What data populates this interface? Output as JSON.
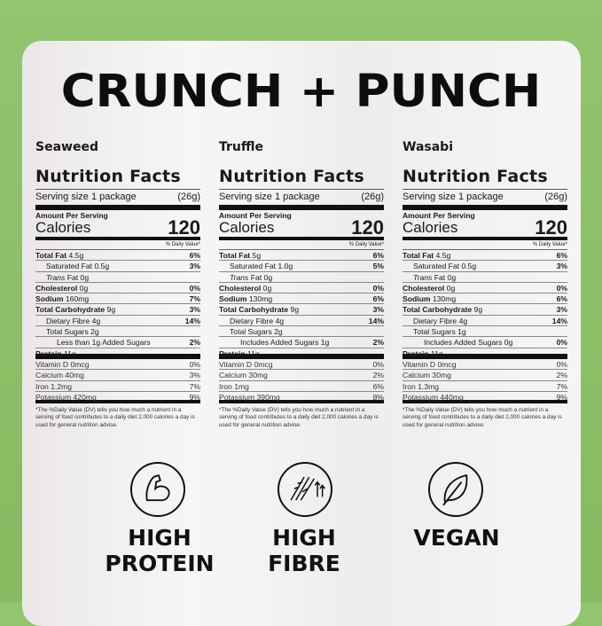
{
  "title": "CRUNCH + PUNCH",
  "panels": [
    {
      "flavor": "Seaweed",
      "heading": "Nutrition Facts",
      "serving": "Serving size 1 package",
      "serving_g": "(26g)",
      "amount": "Amount Per Serving",
      "calories_label": "Calories",
      "calories": "120",
      "dv_header": "% Daily Value*",
      "rows": [
        {
          "b": "Total Fat",
          "t": " 4.5g",
          "dv": "6%",
          "i": 0
        },
        {
          "b": "",
          "t": "Saturated Fat 0.5g",
          "dv": "3%",
          "i": 1
        },
        {
          "b": "",
          "it": "Trans",
          "t": " Fat 0g",
          "dv": "",
          "i": 1
        },
        {
          "b": "Cholesterol",
          "t": " 0g",
          "dv": "0%",
          "i": 0
        },
        {
          "b": "Sodium",
          "t": " 160mg",
          "dv": "7%",
          "i": 0
        },
        {
          "b": "Total Carbohydrate",
          "t": " 9g",
          "dv": "3%",
          "i": 0
        },
        {
          "b": "",
          "t": "Dietary Fibre 4g",
          "dv": "14%",
          "i": 1
        },
        {
          "b": "",
          "t": "Total Sugars 2g",
          "dv": "",
          "i": 1
        },
        {
          "b": "",
          "t": "Less than 1g Added Sugars",
          "dv": "2%",
          "i": 2
        },
        {
          "b": "Protein",
          "t": " 11g",
          "dv": "",
          "i": 0
        }
      ],
      "vitamins": [
        {
          "t": "Vitamin D 0mcg",
          "dv": "0%"
        },
        {
          "t": "Calcium 40mg",
          "dv": "3%"
        },
        {
          "t": "Iron 1.2mg",
          "dv": "7%"
        },
        {
          "t": "Potassium 420mg",
          "dv": "9%"
        }
      ],
      "footnote": "*The %Daily Value (DV) tells you how much a nutrient in a serving of food contributes to a daily diet 2,000 calories a day is used for general nutrition advise."
    },
    {
      "flavor": "Truffle",
      "heading": "Nutrition Facts",
      "serving": "Serving size 1 package",
      "serving_g": "(26g)",
      "amount": "Amount Per Serving",
      "calories_label": "Calories",
      "calories": "120",
      "dv_header": "% Daily Value*",
      "rows": [
        {
          "b": "Total Fat",
          "t": " 5g",
          "dv": "6%",
          "i": 0
        },
        {
          "b": "",
          "t": "Saturated Fat 1.0g",
          "dv": "5%",
          "i": 1
        },
        {
          "b": "",
          "it": "Trans",
          "t": " Fat 0g",
          "dv": "",
          "i": 1
        },
        {
          "b": "Cholesterol",
          "t": " 0g",
          "dv": "0%",
          "i": 0
        },
        {
          "b": "Sodium",
          "t": " 130mg",
          "dv": "6%",
          "i": 0
        },
        {
          "b": "Total Carbohydrate",
          "t": " 9g",
          "dv": "3%",
          "i": 0
        },
        {
          "b": "",
          "t": "Dietary Fibre 4g",
          "dv": "14%",
          "i": 1
        },
        {
          "b": "",
          "t": "Total Sugars 2g",
          "dv": "",
          "i": 1
        },
        {
          "b": "",
          "t": "Includes Added Sugars 1g",
          "dv": "2%",
          "i": 2
        },
        {
          "b": "Protein",
          "t": " 11g",
          "dv": "",
          "i": 0
        }
      ],
      "vitamins": [
        {
          "t": "Vitamin D 0mcg",
          "dv": "0%"
        },
        {
          "t": "Calcium 30mg",
          "dv": "2%"
        },
        {
          "t": "Iron 1mg",
          "dv": "6%"
        },
        {
          "t": "Potassium 390mg",
          "dv": "8%"
        }
      ],
      "footnote": "*The %Daily Value (DV) tells you how much a nutrient in a serving of food contributes to a daily diet 2,000 calories a day is used for general nutrition advise."
    },
    {
      "flavor": "Wasabi",
      "heading": "Nutrition Facts",
      "serving": "Serving size 1 package",
      "serving_g": "(26g)",
      "amount": "Amount Per Serving",
      "calories_label": "Calories",
      "calories": "120",
      "dv_header": "% Daily Value*",
      "rows": [
        {
          "b": "Total Fat",
          "t": " 4.5g",
          "dv": "6%",
          "i": 0
        },
        {
          "b": "",
          "t": "Saturated Fat 0.5g",
          "dv": "3%",
          "i": 1
        },
        {
          "b": "",
          "it": "Trans",
          "t": " Fat 0g",
          "dv": "",
          "i": 1
        },
        {
          "b": "Cholesterol",
          "t": " 0g",
          "dv": "0%",
          "i": 0
        },
        {
          "b": "Sodium",
          "t": " 130mg",
          "dv": "6%",
          "i": 0
        },
        {
          "b": "Total Carbohydrate",
          "t": " 9g",
          "dv": "3%",
          "i": 0
        },
        {
          "b": "",
          "t": "Dietary Fibre 4g",
          "dv": "14%",
          "i": 1
        },
        {
          "b": "",
          "t": "Total Sugars 1g",
          "dv": "",
          "i": 1
        },
        {
          "b": "",
          "t": "Includes Added Sugars 0g",
          "dv": "0%",
          "i": 2
        },
        {
          "b": "Protein",
          "t": " 11g",
          "dv": "",
          "i": 0
        }
      ],
      "vitamins": [
        {
          "t": "Vitamin D 0mcg",
          "dv": "0%"
        },
        {
          "t": "Calcium 30mg",
          "dv": "2%"
        },
        {
          "t": "Iron 1.3mg",
          "dv": "7%"
        },
        {
          "t": "Potassium 440mg",
          "dv": "9%"
        }
      ],
      "footnote": "*The %Daily Value (DV) tells you how much a nutrient in a serving of food contributes to a daily diet 2,000 calories a day is used for general nutrition advise."
    }
  ],
  "badges": [
    {
      "icon": "flexed-arm-icon",
      "line1": "HIGH",
      "line2": "PROTEIN"
    },
    {
      "icon": "fibre-wheat-icon",
      "line1": "HIGH",
      "line2": "FIBRE"
    },
    {
      "icon": "leaf-icon",
      "line1": "VEGAN",
      "line2": ""
    }
  ]
}
